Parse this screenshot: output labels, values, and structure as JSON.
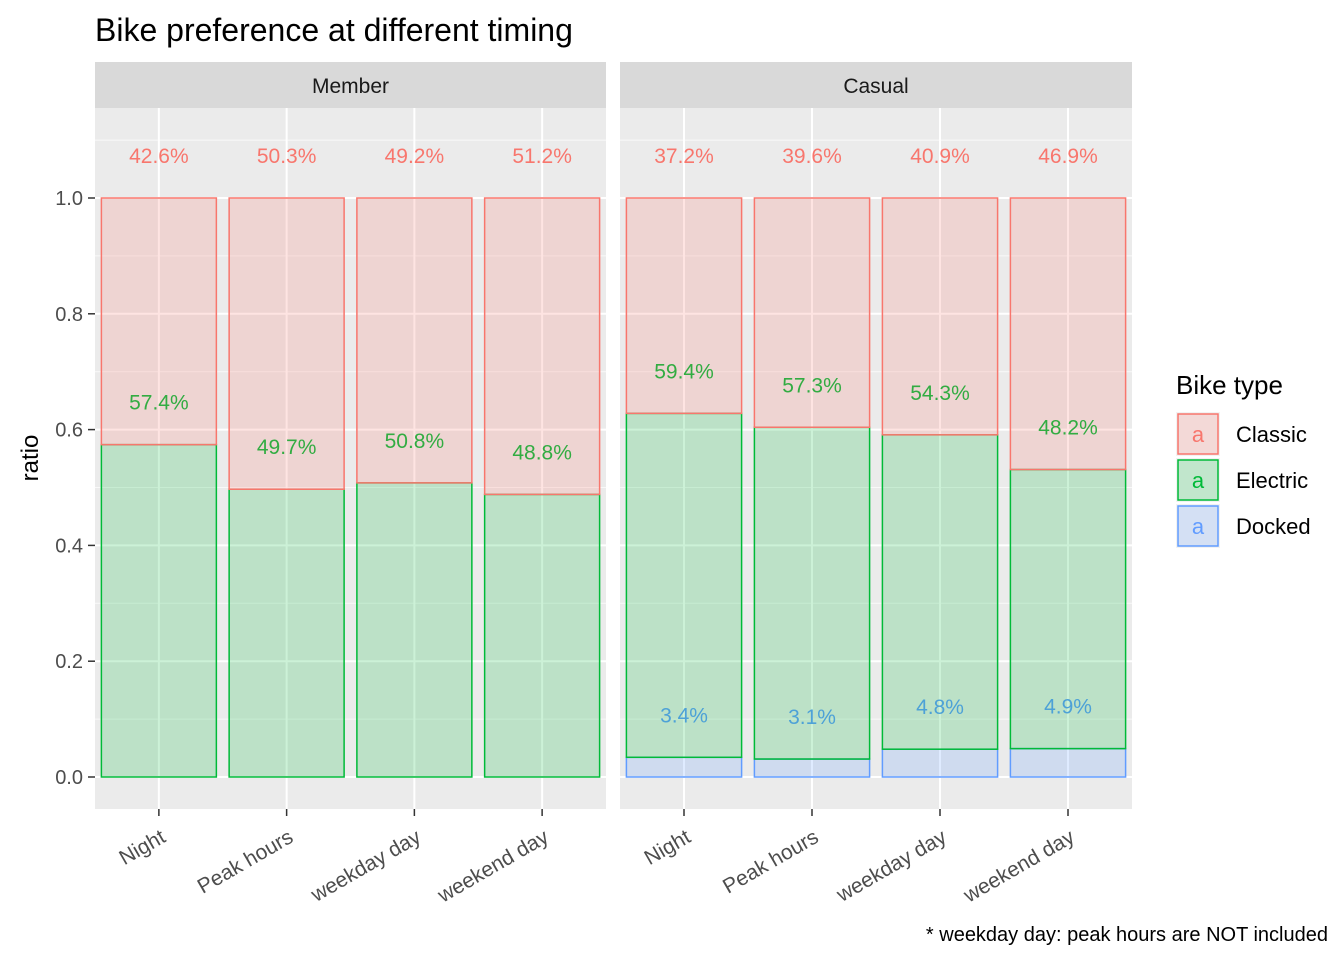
{
  "chart_data": {
    "type": "bar",
    "title": "Bike preference at different timing",
    "xlabel": "",
    "ylabel": "ratio",
    "caption": "* weekday day: peak hours are NOT included",
    "ylim": [
      0,
      1.1
    ],
    "yticks": [
      "0.0",
      "0.2",
      "0.4",
      "0.6",
      "0.8",
      "1.0"
    ],
    "stacked": true,
    "grid": true,
    "legend": {
      "title": "Bike type",
      "placement": "right",
      "key_glyph": "a",
      "entries": [
        "Classic",
        "Electric",
        "Docked"
      ]
    },
    "colors": {
      "Classic": "#F8766D",
      "Electric": "#00BA38",
      "Docked": "#619CFF",
      "panel_bg": "#EBEBEB",
      "strip_bg": "#D9D9D9",
      "grid": "#FFFFFF"
    },
    "categories": [
      "Night",
      "Peak hours",
      "weekday day",
      "weekend day"
    ],
    "facets": [
      {
        "name": "Member",
        "series": [
          {
            "name": "Docked",
            "values": [
              0,
              0,
              0,
              0
            ],
            "labels": [
              "",
              "",
              "",
              ""
            ]
          },
          {
            "name": "Electric",
            "values": [
              0.574,
              0.497,
              0.508,
              0.488
            ],
            "labels": [
              "57.4%",
              "49.7%",
              "50.8%",
              "48.8%"
            ]
          },
          {
            "name": "Classic",
            "values": [
              0.426,
              0.503,
              0.492,
              0.512
            ],
            "labels": [
              "42.6%",
              "50.3%",
              "49.2%",
              "51.2%"
            ]
          }
        ]
      },
      {
        "name": "Casual",
        "series": [
          {
            "name": "Docked",
            "values": [
              0.034,
              0.031,
              0.048,
              0.049
            ],
            "labels": [
              "3.4%",
              "3.1%",
              "4.8%",
              "4.9%"
            ]
          },
          {
            "name": "Electric",
            "values": [
              0.594,
              0.573,
              0.543,
              0.482
            ],
            "labels": [
              "59.4%",
              "57.3%",
              "54.3%",
              "48.2%"
            ]
          },
          {
            "name": "Classic",
            "values": [
              0.372,
              0.396,
              0.409,
              0.469
            ],
            "labels": [
              "37.2%",
              "39.6%",
              "40.9%",
              "46.9%"
            ]
          }
        ]
      }
    ]
  }
}
